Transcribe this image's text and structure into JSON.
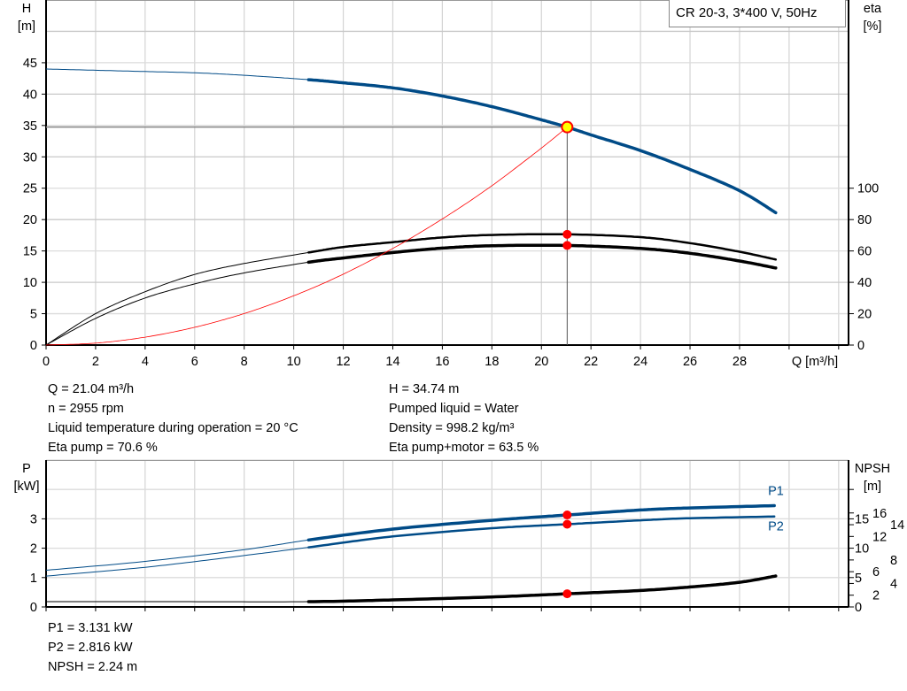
{
  "chart_data": [
    {
      "type": "line",
      "title": "CR 20-3, 3*400 V, 50Hz",
      "xlabel": "Q [m³/h]",
      "ylabel_line1": "H",
      "ylabel_line2": "[m]",
      "y2label_line1": "eta",
      "y2label_line2": "[%]",
      "xlim": [
        0,
        32.4
      ],
      "ylim": [
        0,
        55
      ],
      "y2lim": [
        0,
        220
      ],
      "x_ticks": [
        0,
        2,
        4,
        6,
        8,
        10,
        12,
        14,
        16,
        18,
        20,
        22,
        24,
        26,
        28
      ],
      "y_ticks": [
        0,
        5,
        10,
        15,
        20,
        25,
        30,
        35,
        40,
        45
      ],
      "y2_ticks": [
        0,
        20,
        40,
        60,
        80,
        100
      ],
      "grid": true,
      "series": [
        {
          "id": "H",
          "axis": "left",
          "color": "#004b87",
          "x": [
            0,
            2,
            4,
            6,
            8,
            10.6,
            12,
            14,
            16,
            18,
            20,
            21.04,
            22,
            24,
            26,
            28,
            29.5
          ],
          "y": [
            44,
            43.8,
            43.6,
            43.4,
            43.0,
            42.3,
            41.8,
            41.0,
            39.7,
            38.0,
            35.9,
            34.74,
            33.5,
            31.0,
            28.0,
            24.6,
            21.0
          ]
        },
        {
          "id": "eta-pump",
          "axis": "right",
          "color": "#000000",
          "x": [
            0,
            2,
            4,
            6,
            8,
            10.6,
            12,
            14,
            16,
            18,
            21.04,
            24,
            26,
            28,
            29.5
          ],
          "y": [
            0,
            20,
            34,
            45,
            52,
            59,
            62.5,
            65.6,
            68.6,
            70.2,
            70.6,
            68.8,
            65,
            59.5,
            54.4
          ]
        },
        {
          "id": "eta-pump-motor",
          "axis": "right",
          "color": "#000000",
          "x": [
            0,
            2,
            4,
            6,
            8,
            10.6,
            12,
            14,
            16,
            18,
            21.04,
            24,
            26,
            28,
            29.5
          ],
          "y": [
            0,
            17,
            30,
            39,
            46,
            52.8,
            55.5,
            59,
            61.8,
            63.3,
            63.5,
            61.6,
            58.5,
            53.6,
            49
          ]
        },
        {
          "id": "system-curve",
          "axis": "left",
          "color": "#ff0000",
          "x": [
            0,
            2,
            4,
            6,
            8,
            10,
            12,
            14,
            16,
            18,
            20,
            21.04
          ],
          "y": [
            0,
            0.31,
            1.26,
            2.83,
            5.02,
            7.85,
            11.3,
            15.4,
            20.1,
            25.4,
            31.4,
            34.74
          ]
        }
      ],
      "operating_point": {
        "Q": 21.04,
        "H": 34.74,
        "eta_pump": 70.6,
        "eta_pump_motor": 63.5
      },
      "thick_from_q": 10.6
    },
    {
      "type": "line",
      "ylabel_line1": "P",
      "ylabel_line2": "[kW]",
      "y2label_line1": "NPSH",
      "y2label_line2": "[m]",
      "xlim": [
        0,
        32.4
      ],
      "ylim": [
        0,
        5
      ],
      "y2lim": [
        0,
        25
      ],
      "y_ticks": [
        0,
        1,
        2,
        3
      ],
      "y2_ticks": [
        0,
        2,
        4,
        5,
        6,
        8,
        10,
        12,
        14,
        15,
        16
      ],
      "y2_unlabeled_ticks": [
        20
      ],
      "grid": true,
      "series": [
        {
          "id": "P1",
          "name": "P1",
          "axis": "left",
          "color": "#004b87",
          "x": [
            0,
            4,
            8,
            10.6,
            14,
            18,
            21.04,
            24,
            26,
            29.5
          ],
          "y": [
            1.25,
            1.55,
            1.95,
            2.28,
            2.65,
            2.95,
            3.131,
            3.3,
            3.37,
            3.45
          ]
        },
        {
          "id": "P2",
          "name": "P2",
          "axis": "left",
          "color": "#004b87",
          "x": [
            0,
            4,
            8,
            10.6,
            14,
            18,
            21.04,
            24,
            26,
            29.5
          ],
          "y": [
            1.05,
            1.35,
            1.75,
            2.03,
            2.4,
            2.68,
            2.816,
            2.95,
            3.02,
            3.08
          ]
        },
        {
          "id": "NPSH",
          "axis": "right",
          "color": "#000000",
          "x": [
            0,
            5,
            10.6,
            14,
            18,
            21.04,
            24,
            26,
            28,
            29.5
          ],
          "y": [
            0.9,
            0.9,
            0.9,
            1.2,
            1.7,
            2.24,
            2.8,
            3.4,
            4.2,
            5.3
          ]
        }
      ],
      "operating_point": {
        "Q": 21.04,
        "P1": 3.131,
        "P2": 2.816,
        "NPSH": 2.24
      },
      "thick_from_q": 10.6
    }
  ],
  "info_top_left": [
    "Q = 21.04 m³/h",
    "n = 2955 rpm",
    "Liquid temperature during operation = 20 °C",
    "Eta pump = 70.6 %"
  ],
  "info_top_right": [
    "H = 34.74 m",
    "Pumped liquid = Water",
    "Density = 998.2 kg/m³",
    "Eta pump+motor = 63.5 %"
  ],
  "info_bottom": [
    "P1 = 3.131 kW",
    "P2 = 2.816 kW",
    "NPSH = 2.24 m"
  ],
  "colors": {
    "grid": "#d4d4d4",
    "pump_blue": "#004b87",
    "marker_red": "#ff0000",
    "marker_yellow": "#ffff00"
  }
}
